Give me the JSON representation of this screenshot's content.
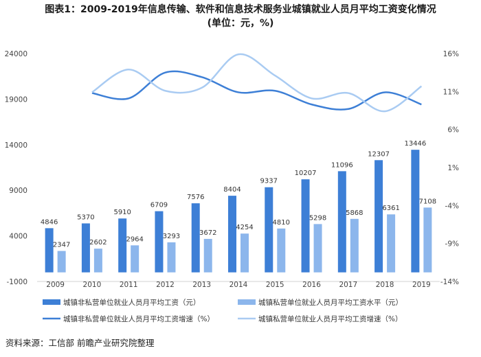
{
  "title_line1": "图表1：2009-2019年信息传输、软件和信息技术服务业城镇就业人员月平均工资变化情况",
  "title_line2": "(单位：元，%)",
  "source": "资料来源：工信部 前瞻产业研究院整理",
  "chart_data": {
    "type": "bar",
    "categories": [
      "2009",
      "2010",
      "2011",
      "2012",
      "2013",
      "2014",
      "2015",
      "2016",
      "2017",
      "2018",
      "2019"
    ],
    "series": [
      {
        "name": "城镇非私营单位就业人员月平均工资（元）",
        "type": "bar",
        "axis": "left",
        "color": "#3d7fd6",
        "values": [
          4846,
          5370,
          5910,
          6709,
          7576,
          8404,
          9337,
          10207,
          11096,
          12307,
          13446
        ]
      },
      {
        "name": "城镇私营单位就业人员月平均工资水平（元）",
        "type": "bar",
        "axis": "left",
        "color": "#8cb6ec",
        "values": [
          2347,
          2602,
          2964,
          3293,
          3672,
          4254,
          4810,
          5298,
          5868,
          6361,
          7108
        ]
      },
      {
        "name": "城镇非私营单位就业人员月平均工资增速（%）",
        "type": "line",
        "axis": "right",
        "color": "#3d7fd6",
        "values": [
          null,
          10.8,
          10.1,
          13.5,
          12.9,
          10.9,
          11.1,
          9.3,
          8.7,
          10.9,
          9.3
        ]
      },
      {
        "name": "城镇私营单位就业人员月平均工资增速（%）",
        "type": "line",
        "axis": "right",
        "color": "#a9cbf2",
        "values": [
          null,
          10.9,
          13.9,
          11.1,
          11.5,
          15.9,
          13.1,
          10.1,
          10.8,
          8.4,
          11.7
        ]
      }
    ],
    "y_left": {
      "ticks": [
        -1000,
        4000,
        9000,
        14000,
        19000,
        24000
      ],
      "range": [
        -1000,
        24000
      ]
    },
    "y_right": {
      "ticks": [
        "-14%",
        "-9%",
        "-4%",
        "1%",
        "6%",
        "11%",
        "16%"
      ],
      "range": [
        -14,
        16
      ]
    },
    "grid": false,
    "legend_position": "bottom"
  }
}
